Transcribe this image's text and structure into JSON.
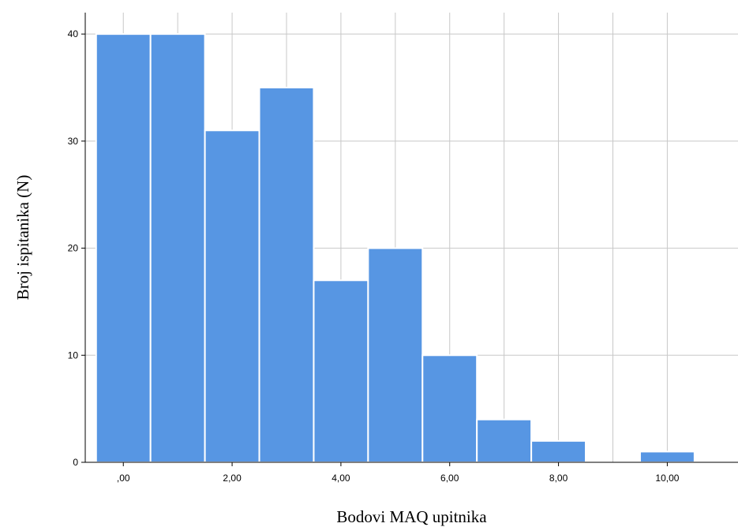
{
  "chart_data": {
    "type": "bar",
    "xlabel": "Bodovi MAQ upitnika",
    "ylabel": "Broj ispitanika (N)",
    "categories": [
      "0",
      "1",
      "2",
      "3",
      "4",
      "5",
      "6",
      "7",
      "8",
      "9",
      "10"
    ],
    "x": [
      0,
      1,
      2,
      3,
      4,
      5,
      6,
      7,
      8,
      9,
      10
    ],
    "values": [
      40,
      40,
      31,
      35,
      17,
      20,
      10,
      4,
      2,
      0,
      1
    ],
    "x_tick_labels": [
      ",00",
      "2,00",
      "4,00",
      "6,00",
      "8,00",
      "10,00"
    ],
    "x_ticks": [
      0,
      2,
      4,
      6,
      8,
      10
    ],
    "y_tick_labels": [
      "0",
      "10",
      "20",
      "30",
      "40"
    ],
    "y_ticks": [
      0,
      10,
      20,
      30,
      40
    ],
    "xlim": [
      -0.7,
      11.3
    ],
    "ylim": [
      0,
      42
    ],
    "grid": true,
    "bar_color": "#5796e3",
    "bar_edge_color": "#ffffff",
    "grid_color": "#c8c8c8",
    "axis_color": "#000000"
  }
}
